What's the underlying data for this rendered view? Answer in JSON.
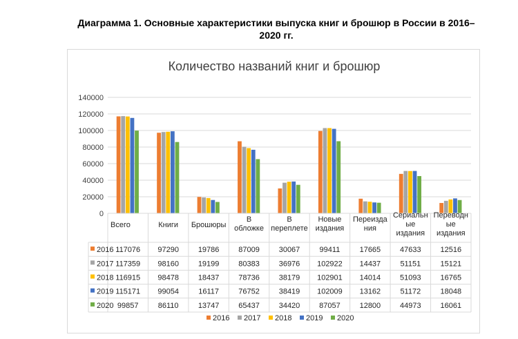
{
  "document": {
    "title_line1": "Диаграмма 1. Основные характеристики выпуска книг и брошюр в России в 2016–",
    "title_line2": "2020 гг."
  },
  "colors": {
    "2016": "#ED7D31",
    "2017": "#A5A5A5",
    "2018": "#FFC000",
    "2019": "#4472C4",
    "2020": "#70AD47",
    "grid": "#d9d9d9",
    "text": "#404040"
  },
  "chart_data": {
    "type": "bar",
    "title": "Количество названий книг и брошюр",
    "xlabel": "",
    "ylabel": "",
    "ylim": [
      0,
      140000
    ],
    "yticks": [
      0,
      20000,
      40000,
      60000,
      80000,
      100000,
      120000,
      140000
    ],
    "grid": true,
    "legend_position": "bottom",
    "categories": [
      [
        "Всего"
      ],
      [
        "Книги"
      ],
      [
        "Брошюры"
      ],
      [
        "В",
        "обложке"
      ],
      [
        "В",
        "переплете"
      ],
      [
        "Новые",
        "издания"
      ],
      [
        "Переизда",
        "ния"
      ],
      [
        "Сериальн",
        "ые",
        "издания"
      ],
      [
        "Переводн",
        "ые",
        "издания"
      ]
    ],
    "series": [
      {
        "name": "2016",
        "values": [
          117076,
          97290,
          19786,
          87009,
          30067,
          99411,
          17665,
          47633,
          12516
        ]
      },
      {
        "name": "2017",
        "values": [
          117359,
          98160,
          19199,
          80383,
          36976,
          102922,
          14437,
          51151,
          15121
        ]
      },
      {
        "name": "2018",
        "values": [
          116915,
          98478,
          18437,
          78736,
          38179,
          102901,
          14014,
          51093,
          16765
        ]
      },
      {
        "name": "2019",
        "values": [
          115171,
          99054,
          16117,
          76752,
          38419,
          102009,
          13162,
          51172,
          18048
        ]
      },
      {
        "name": "2020",
        "values": [
          99857,
          86110,
          13747,
          65437,
          34420,
          87057,
          12800,
          44973,
          16061
        ]
      }
    ]
  }
}
